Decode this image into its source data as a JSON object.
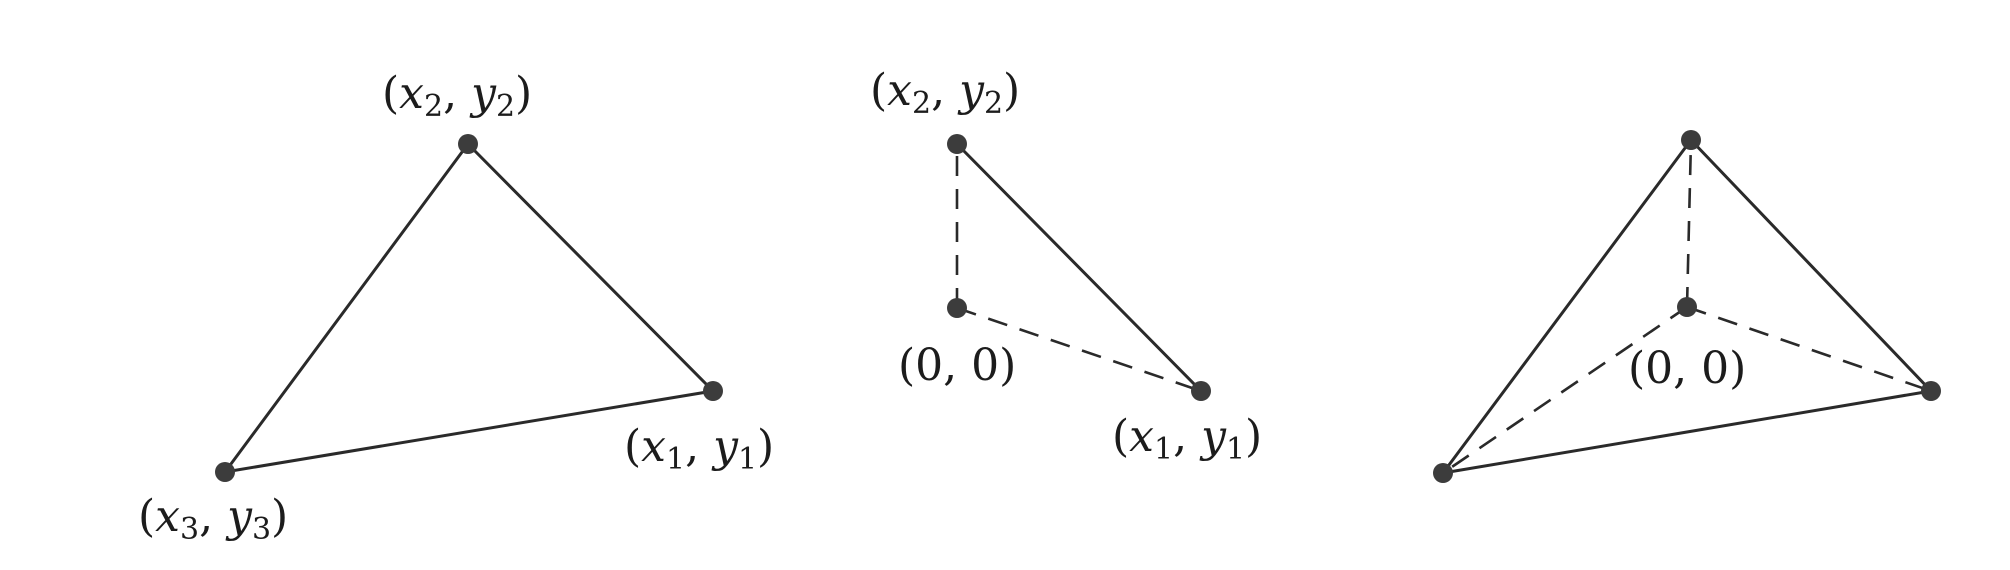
{
  "panel_left": {
    "label_v1": {
      "lp": "(",
      "x": "x",
      "xs": "1",
      "sep": ", ",
      "y": "y",
      "ys": "1",
      "rp": ")"
    },
    "label_v2": {
      "lp": "(",
      "x": "x",
      "xs": "2",
      "sep": ", ",
      "y": "y",
      "ys": "2",
      "rp": ")"
    },
    "label_v3": {
      "lp": "(",
      "x": "x",
      "xs": "3",
      "sep": ", ",
      "y": "y",
      "ys": "3",
      "rp": ")"
    }
  },
  "panel_middle": {
    "label_v1": {
      "lp": "(",
      "x": "x",
      "xs": "1",
      "sep": ", ",
      "y": "y",
      "ys": "1",
      "rp": ")"
    },
    "label_v2": {
      "lp": "(",
      "x": "x",
      "xs": "2",
      "sep": ", ",
      "y": "y",
      "ys": "2",
      "rp": ")"
    },
    "label_origin": "(0, 0)"
  },
  "panel_right": {
    "label_origin": "(0, 0)"
  },
  "colors": {
    "stroke": "#2a2a2a",
    "vertex": "#3c3c3c",
    "text": "#1c1c1c"
  }
}
